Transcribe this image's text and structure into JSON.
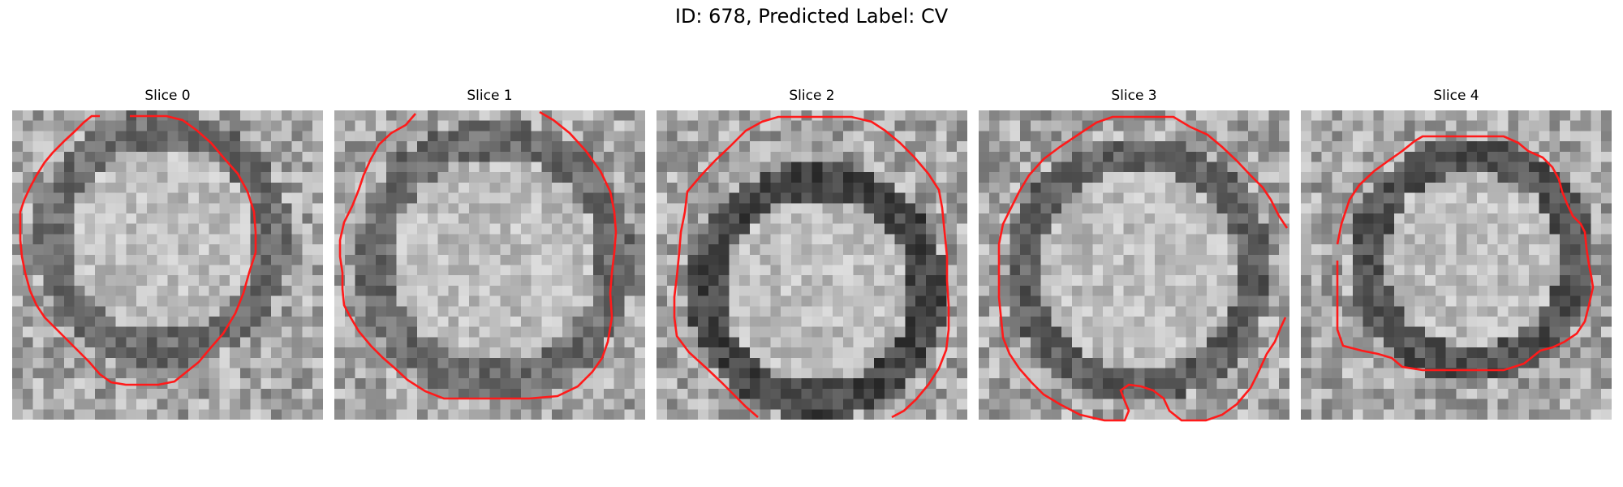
{
  "figure": {
    "title": "ID: 678, Predicted Label: CV"
  },
  "slices": [
    {
      "title": "Slice 0"
    },
    {
      "title": "Slice 1"
    },
    {
      "title": "Slice 2"
    },
    {
      "title": "Slice 3"
    },
    {
      "title": "Slice 4"
    }
  ],
  "contour_color": "#ff1a1a",
  "colormap": "gray"
}
